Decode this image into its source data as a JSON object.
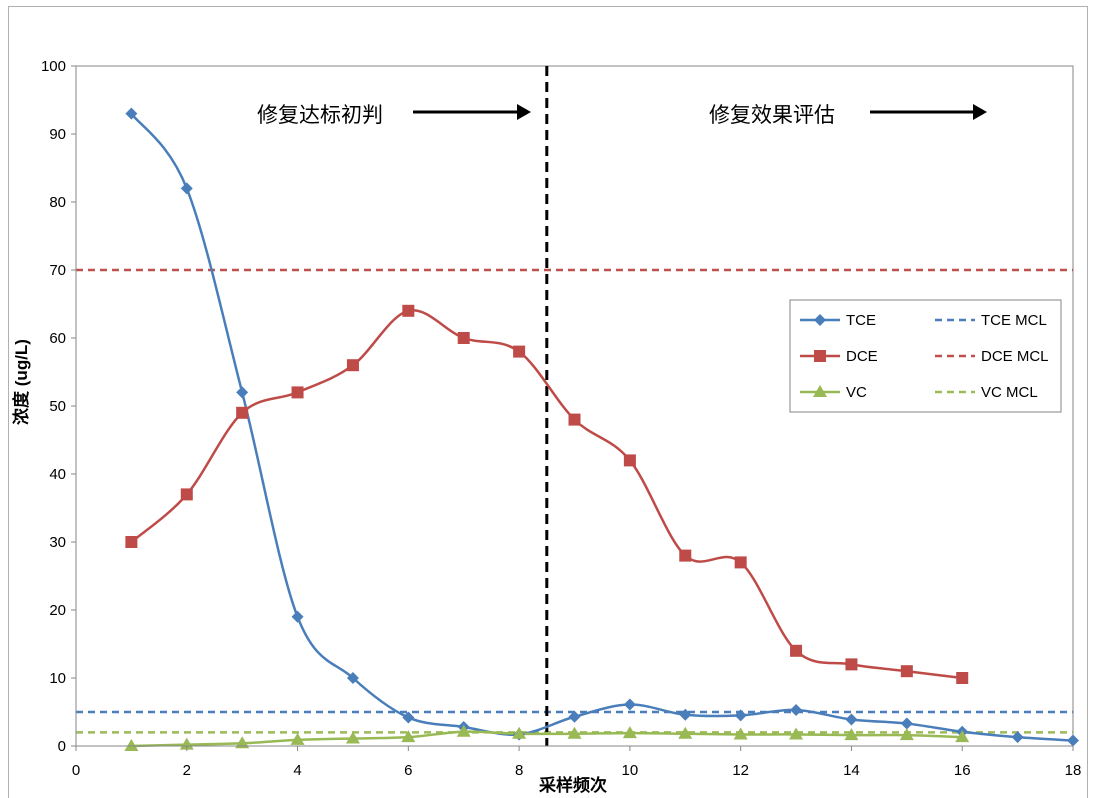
{
  "chart_data": {
    "type": "line",
    "title": "",
    "xlabel": "采样频次",
    "ylabel": "浓度 (ug/L)",
    "xlim": [
      0,
      18
    ],
    "ylim": [
      0,
      100
    ],
    "xticks": [
      "0",
      "2",
      "4",
      "6",
      "8",
      "10",
      "12",
      "14",
      "16",
      "18"
    ],
    "yticks": [
      "0",
      "10",
      "20",
      "30",
      "40",
      "50",
      "60",
      "70",
      "80",
      "90",
      "100"
    ],
    "grid": false,
    "legend_position": "right",
    "series": [
      {
        "name": "TCE",
        "color": "#4a7ebb",
        "marker": "diamond",
        "x": [
          1,
          2,
          3,
          4,
          5,
          6,
          7,
          8,
          9,
          10,
          11,
          12,
          13,
          14,
          15,
          16,
          17,
          18
        ],
        "y": [
          93,
          82,
          52,
          19,
          10,
          4.2,
          2.8,
          1.7,
          4.3,
          6.1,
          4.6,
          4.5,
          5.3,
          3.9,
          3.3,
          2.1,
          1.3,
          0.8
        ]
      },
      {
        "name": "DCE",
        "color": "#be4b48",
        "marker": "square",
        "x": [
          1,
          2,
          3,
          4,
          5,
          6,
          7,
          8,
          9,
          10,
          11,
          12,
          13,
          14,
          15,
          16
        ],
        "y": [
          30,
          37,
          49,
          52,
          56,
          64,
          60,
          58,
          48,
          42,
          28,
          27,
          14,
          12,
          11,
          10
        ]
      },
      {
        "name": "VC",
        "color": "#98b954",
        "marker": "triangle",
        "x": [
          1,
          2,
          3,
          4,
          5,
          6,
          7,
          8,
          9,
          10,
          11,
          12,
          13,
          14,
          15,
          16
        ],
        "y": [
          0,
          0.2,
          0.4,
          0.9,
          1.1,
          1.3,
          2.1,
          1.8,
          1.8,
          1.9,
          1.8,
          1.7,
          1.7,
          1.6,
          1.6,
          1.3
        ]
      }
    ],
    "reference_lines": [
      {
        "name": "TCE MCL",
        "value": 5,
        "color": "#4a7ebb",
        "style": "dashed"
      },
      {
        "name": "DCE MCL",
        "value": 70,
        "color": "#c0504d",
        "style": "dashed"
      },
      {
        "name": "VC MCL",
        "value": 2,
        "color": "#9bbb59",
        "style": "dashed"
      }
    ],
    "divider": {
      "x": 8.5,
      "color": "#000000",
      "style": "dashed"
    },
    "annotations": [
      {
        "text": "修复达标初判",
        "arrow": "right"
      },
      {
        "text": "修复效果评估",
        "arrow": "right"
      }
    ]
  }
}
